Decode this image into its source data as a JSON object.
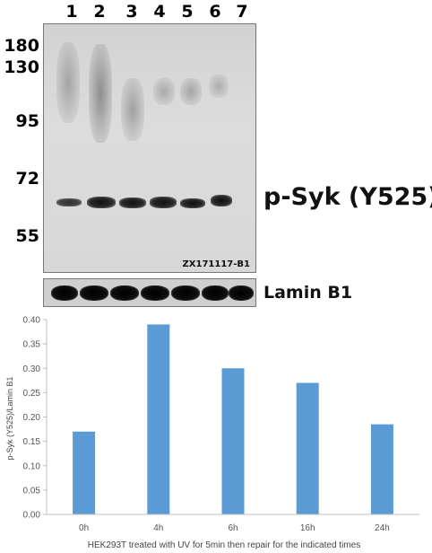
{
  "blot": {
    "lanes": [
      "1",
      "2",
      "3",
      "4",
      "5",
      "6",
      "7"
    ],
    "markers": [
      "180",
      "130",
      "95",
      "72",
      "55"
    ],
    "target_label": "p-Syk (Y525)",
    "blot_id": "ZX171117-B1",
    "loading_control_label": "Lamin B1"
  },
  "chart_data": {
    "type": "bar",
    "categories": [
      "0h",
      "4h",
      "6h",
      "16h",
      "24h"
    ],
    "values": [
      0.17,
      0.39,
      0.3,
      0.27,
      0.185
    ],
    "title": "",
    "xlabel": "HEK293T treated with UV for 5min then repair for the indicated times",
    "ylabel": "p-Syk (Y525)/Lamin B1",
    "ylim": [
      0,
      0.4
    ],
    "yticks": [
      "0.00",
      "0.05",
      "0.10",
      "0.15",
      "0.20",
      "0.25",
      "0.30",
      "0.35",
      "0.40"
    ],
    "grid": false,
    "bar_color": "#5b9bd5"
  }
}
